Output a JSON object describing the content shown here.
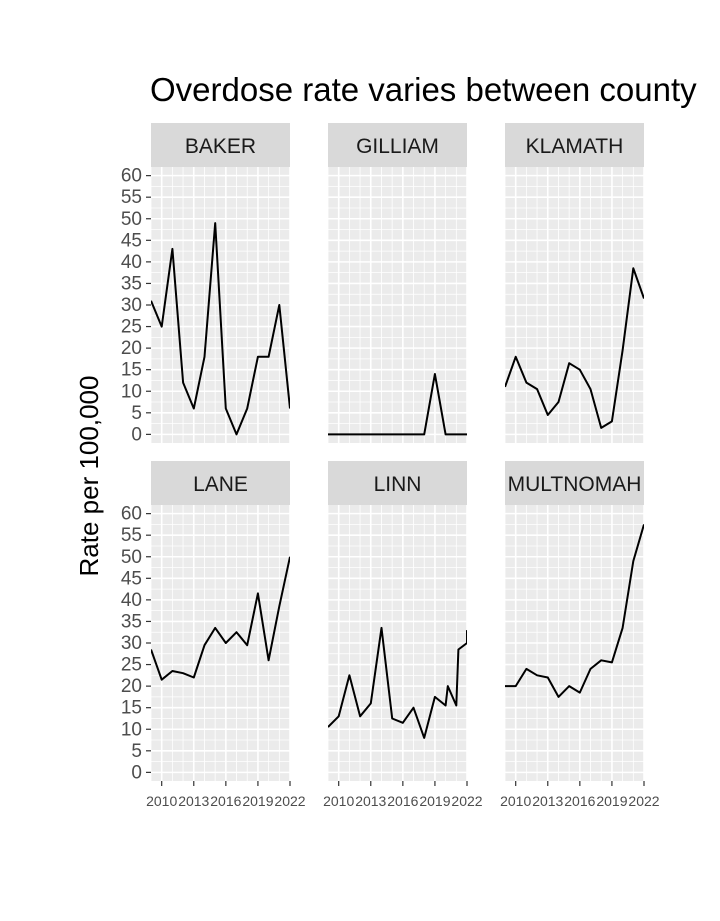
{
  "chart_data": {
    "type": "line",
    "title": "Overdose rate varies between county",
    "xlabel": "",
    "ylabel": "Rate per 100,000",
    "xlim": [
      2009,
      2022
    ],
    "ylim": [
      -2,
      62
    ],
    "y_ticks": [
      0,
      5,
      10,
      15,
      20,
      25,
      30,
      35,
      40,
      45,
      50,
      55,
      60
    ],
    "x_ticks": [
      2010,
      2013,
      2016,
      2019,
      2022
    ],
    "x_tick_labels": [
      "2010",
      "2013",
      "2016",
      "2019",
      "2022"
    ],
    "grid": true,
    "facets": [
      {
        "name": "BAKER",
        "x": [
          2009,
          2010,
          2011,
          2012,
          2013,
          2014,
          2015,
          2016,
          2017,
          2018,
          2019,
          2020,
          2021,
          2022
        ],
        "y": [
          31,
          25,
          43,
          12,
          6,
          18,
          49,
          6,
          0,
          6,
          18,
          18,
          30,
          6
        ]
      },
      {
        "name": "GILLIAM",
        "x": [
          2009,
          2010,
          2011,
          2012,
          2013,
          2014,
          2015,
          2016,
          2017,
          2018,
          2019,
          2020,
          2021,
          2022
        ],
        "y": [
          0,
          0,
          0,
          0,
          0,
          0,
          0,
          0,
          0,
          0,
          14,
          0,
          0,
          0
        ]
      },
      {
        "name": "KLAMATH",
        "x": [
          2009,
          2010,
          2011,
          2012,
          2013,
          2014,
          2015,
          2016,
          2017,
          2018,
          2019,
          2020,
          2021,
          2022
        ],
        "y": [
          11,
          18,
          12,
          10.5,
          4.5,
          7.5,
          16.5,
          15,
          10.5,
          1.5,
          3,
          19.5,
          38.5,
          31.5
        ]
      },
      {
        "name": "LANE",
        "x": [
          2009,
          2010,
          2011,
          2012,
          2013,
          2014,
          2015,
          2016,
          2017,
          2018,
          2019,
          2020,
          2021,
          2022
        ],
        "y": [
          28.5,
          21.5,
          23.5,
          23,
          22,
          29.5,
          33.5,
          30,
          32.5,
          29.5,
          41.5,
          26,
          38.5,
          50
        ]
      },
      {
        "name": "LINN",
        "x": [
          2009,
          2010,
          2011,
          2012,
          2013,
          2014,
          2015,
          2016,
          2017,
          2018,
          2019,
          2020,
          2020.2,
          2021,
          2021.2,
          2022,
          2022
        ],
        "y": [
          10.5,
          13,
          22.5,
          13,
          16,
          33.5,
          12.5,
          11.5,
          15,
          8,
          17.5,
          15.5,
          20,
          15.5,
          28.5,
          30,
          33
        ]
      },
      {
        "name": "MULTNOMAH",
        "x": [
          2009,
          2010,
          2011,
          2012,
          2013,
          2014,
          2015,
          2016,
          2017,
          2018,
          2019,
          2020,
          2021,
          2022
        ],
        "y": [
          20,
          20,
          24,
          22.5,
          22,
          17.5,
          20,
          18.5,
          24,
          26,
          25.5,
          33.5,
          49,
          57.5
        ]
      }
    ]
  }
}
